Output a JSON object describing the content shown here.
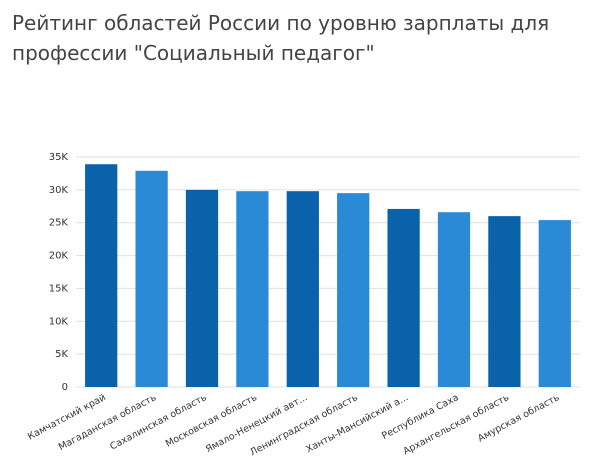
{
  "chart_data": {
    "type": "bar",
    "title": "Рейтинг областей России по уровню зарплаты для профессии \"Социальный педагог\"",
    "categories": [
      "Камчатский край",
      "Магаданская область",
      "Сахалинская область",
      "Московская область",
      "Ямало-Ненецкий авт...",
      "Ленинградская область",
      "Ханты-Мансийский а...",
      "Республика Саха",
      "Архангельская область",
      "Амурская область"
    ],
    "values": [
      33900,
      32900,
      30000,
      29800,
      29800,
      29500,
      27100,
      26600,
      26000,
      25400
    ],
    "colors": [
      "#0a62aa",
      "#2b8ad6",
      "#0a62aa",
      "#2b8ad6",
      "#0a62aa",
      "#2b8ad6",
      "#0a62aa",
      "#2b8ad6",
      "#0a62aa",
      "#2b8ad6"
    ],
    "ylim": [
      0,
      35000
    ],
    "yticks": [
      0,
      {
        "value": 5000,
        "label": "5K"
      },
      {
        "value": 10000,
        "label": "10K"
      },
      {
        "value": 15000,
        "label": "15K"
      },
      {
        "value": 20000,
        "label": "20K"
      },
      {
        "value": 25000,
        "label": "25K"
      },
      {
        "value": 30000,
        "label": "30K"
      },
      {
        "value": 35000,
        "label": "35K"
      }
    ],
    "grid": true
  }
}
